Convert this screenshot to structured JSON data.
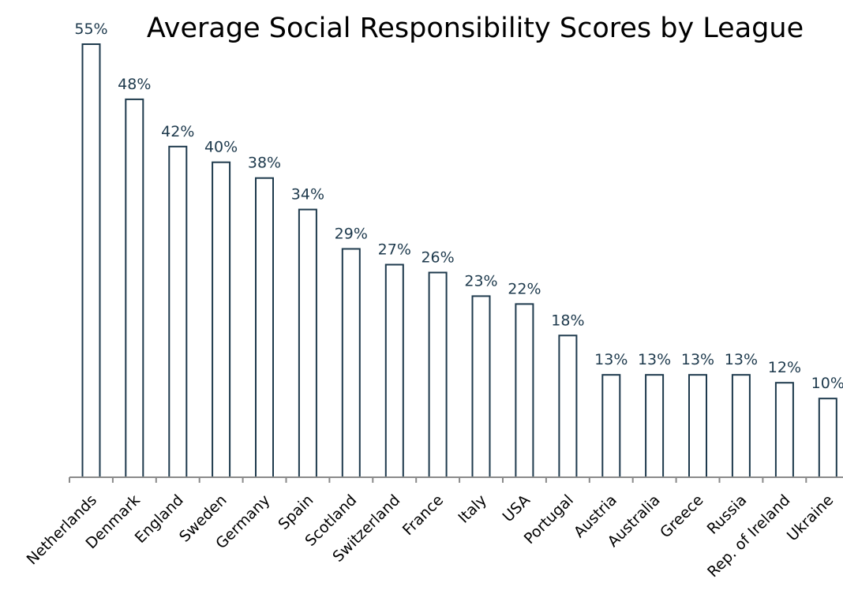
{
  "colors": {
    "bar_stroke": "#1e3a4d",
    "bar_fill": "#ffffff",
    "axis": "#8a8a8a",
    "label_text": "#1e3a4d",
    "title_text": "#000000"
  },
  "chart_data": {
    "type": "bar",
    "title": "Average Social Responsibility Scores by League",
    "xlabel": "",
    "ylabel": "",
    "ylim": [
      0,
      55
    ],
    "grid": false,
    "categories": [
      "Netherlands",
      "Denmark",
      "England",
      "Sweden",
      "Germany",
      "Spain",
      "Scotland",
      "Switzerland",
      "France",
      "Italy",
      "USA",
      "Portugal",
      "Austria",
      "Australia",
      "Greece",
      "Russia",
      "Rep. of Ireland",
      "Ukraine"
    ],
    "values": [
      55,
      48,
      42,
      40,
      38,
      34,
      29,
      27,
      26,
      23,
      22,
      18,
      13,
      13,
      13,
      13,
      12,
      10
    ],
    "data_labels": [
      "55%",
      "48%",
      "42%",
      "40%",
      "38%",
      "34%",
      "29%",
      "27%",
      "26%",
      "23%",
      "22%",
      "18%",
      "13%",
      "13%",
      "13%",
      "13%",
      "12%",
      "10%"
    ]
  }
}
